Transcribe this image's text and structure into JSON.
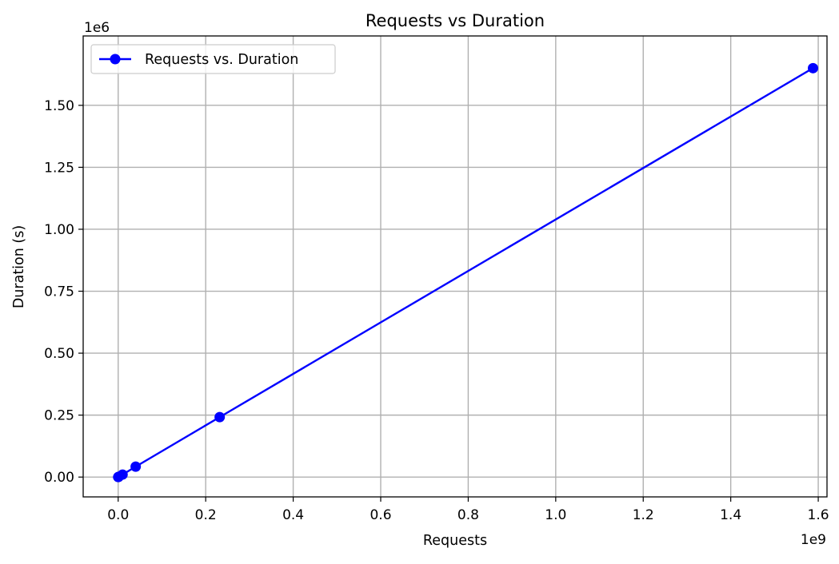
{
  "chart_data": {
    "type": "line",
    "title": "Requests vs Duration",
    "xlabel": "Requests",
    "ylabel": "Duration (s)",
    "x_offset_label": "1e9",
    "y_offset_label": "1e6",
    "x_multiplier": 1000000000,
    "y_multiplier": 1000000,
    "xlim": [
      -0.08,
      1.62
    ],
    "ylim": [
      -0.08,
      1.78
    ],
    "x_ticks": [
      0.0,
      0.2,
      0.4,
      0.6,
      0.8,
      1.0,
      1.2,
      1.4,
      1.6
    ],
    "x_tick_labels": [
      "0.0",
      "0.2",
      "0.4",
      "0.6",
      "0.8",
      "1.0",
      "1.2",
      "1.4",
      "1.6"
    ],
    "y_ticks": [
      0.0,
      0.25,
      0.5,
      0.75,
      1.0,
      1.25,
      1.5
    ],
    "y_tick_labels": [
      "0.00",
      "0.25",
      "0.50",
      "0.75",
      "1.00",
      "1.25",
      "1.50"
    ],
    "grid": true,
    "legend_position": "top-left",
    "series": [
      {
        "name": "Requests vs. Duration",
        "color": "#0000ff",
        "marker": "circle",
        "x": [
          0.0,
          0.001,
          0.01,
          0.04,
          0.232,
          1.588
        ],
        "y": [
          0.0,
          0.001,
          0.01,
          0.042,
          0.242,
          1.65
        ]
      }
    ]
  }
}
